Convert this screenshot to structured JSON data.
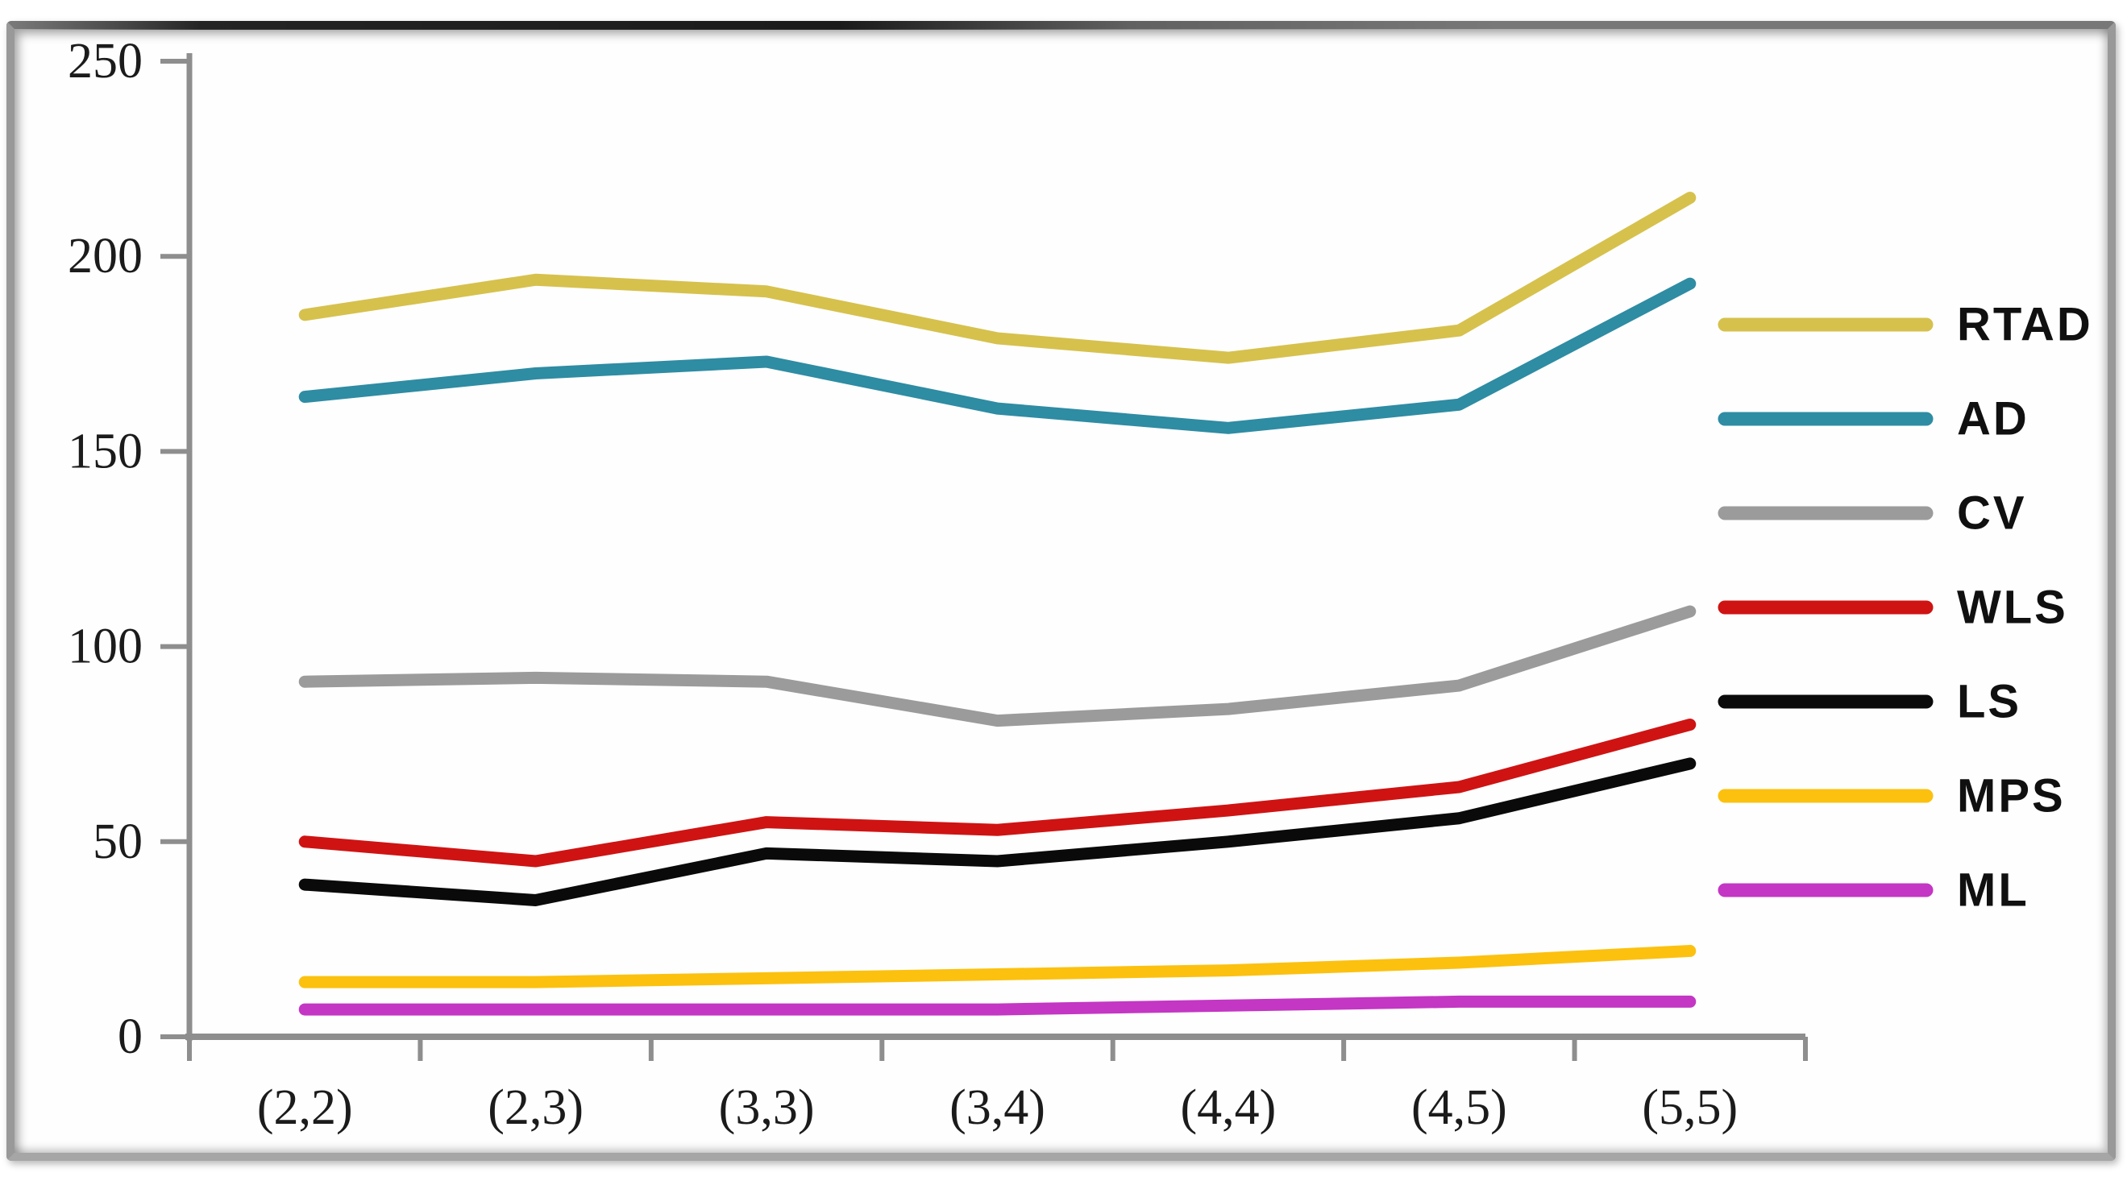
{
  "chart_data": {
    "type": "line",
    "title": "",
    "xlabel": "",
    "ylabel": "",
    "categories": [
      "(2,2)",
      "(2,3)",
      "(3,3)",
      "(3,4)",
      "(4,4)",
      "(4,5)",
      "(5,5)"
    ],
    "series": [
      {
        "name": "RTAD",
        "color": "#d6c14d",
        "values": [
          185,
          194,
          191,
          179,
          174,
          181,
          215
        ]
      },
      {
        "name": "AD",
        "color": "#2e8ca3",
        "values": [
          164,
          170,
          173,
          161,
          156,
          162,
          193
        ]
      },
      {
        "name": "CV",
        "color": "#9b9b9b",
        "values": [
          91,
          92,
          91,
          81,
          84,
          90,
          109
        ]
      },
      {
        "name": "WLS",
        "color": "#cf1313",
        "values": [
          50,
          45,
          55,
          53,
          58,
          64,
          80
        ]
      },
      {
        "name": "LS",
        "color": "#0a0a0a",
        "values": [
          39,
          35,
          47,
          45,
          50,
          56,
          70
        ]
      },
      {
        "name": "MPS",
        "color": "#fcc10f",
        "values": [
          14,
          14,
          15,
          16,
          17,
          19,
          22
        ]
      },
      {
        "name": "ML",
        "color": "#c436c4",
        "values": [
          7,
          7,
          7,
          7,
          8,
          9,
          9
        ]
      }
    ],
    "ylim": [
      0,
      250
    ],
    "yticks": [
      0,
      50,
      100,
      150,
      200,
      250
    ],
    "grid": false,
    "legend_position": "right",
    "axis_color": "#8e8e8e",
    "tick_label_color": "#1b1b1b"
  }
}
